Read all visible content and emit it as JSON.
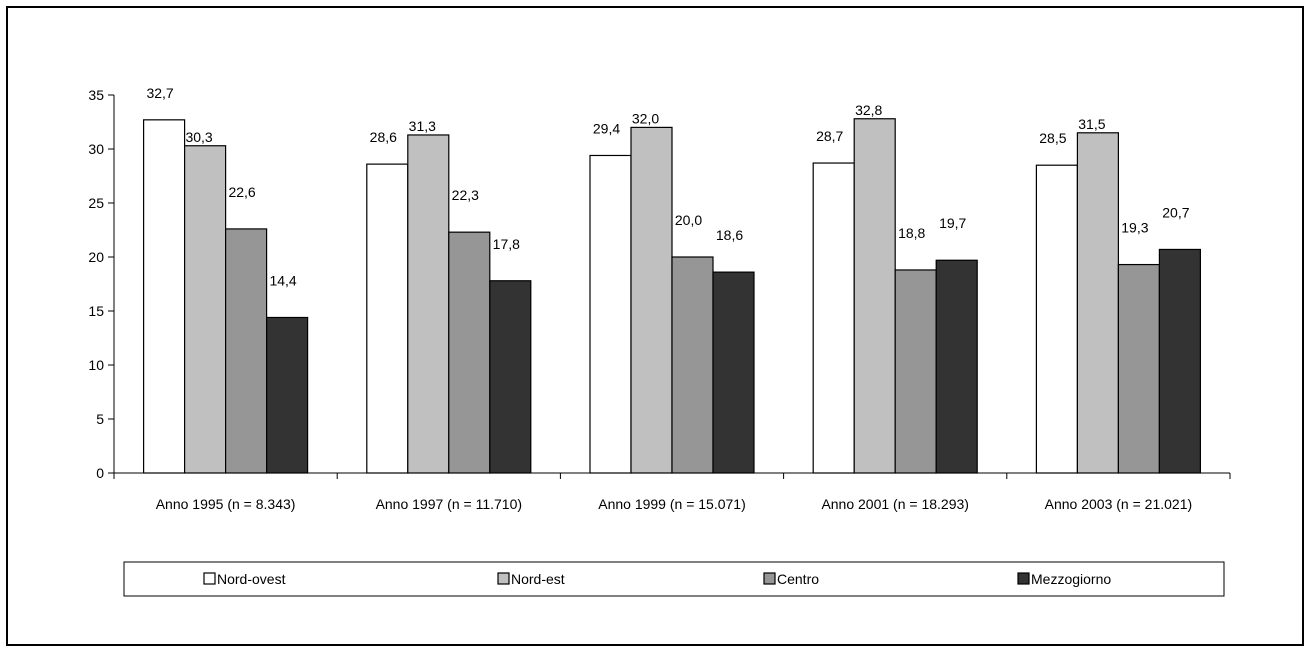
{
  "chart_data": {
    "type": "bar",
    "title": "",
    "xlabel": "",
    "ylabel": "",
    "ylim": [
      0,
      35
    ],
    "yticks": [
      0,
      5,
      10,
      15,
      20,
      25,
      30,
      35
    ],
    "grid": false,
    "legend_position": "bottom",
    "categories": [
      "Anno 1995 (n = 8.343)",
      "Anno 1997 (n = 11.710)",
      "Anno 1999 (n = 15.071)",
      "Anno 2001 (n = 18.293)",
      "Anno 2003 (n = 21.021)"
    ],
    "series": [
      {
        "name": "Nord-ovest",
        "color": "#ffffff",
        "values": [
          32.7,
          28.6,
          29.4,
          28.7,
          28.5
        ],
        "labels": [
          "32,7",
          "28,6",
          "29,4",
          "28,7",
          "28,5"
        ]
      },
      {
        "name": "Nord-est",
        "color": "#c0c0c0",
        "values": [
          30.3,
          31.3,
          32.0,
          32.8,
          31.5
        ],
        "labels": [
          "30,3",
          "31,3",
          "32,0",
          "32,8",
          "31,5"
        ]
      },
      {
        "name": "Centro",
        "color": "#969696",
        "values": [
          22.6,
          22.3,
          20.0,
          18.8,
          19.3
        ],
        "labels": [
          "22,6",
          "22,3",
          "20,0",
          "18,8",
          "19,3"
        ]
      },
      {
        "name": "Mezzogiorno",
        "color": "#333333",
        "values": [
          14.4,
          17.8,
          18.6,
          19.7,
          20.7
        ],
        "labels": [
          "14,4",
          "17,8",
          "18,6",
          "19,7",
          "20,7"
        ]
      }
    ]
  }
}
